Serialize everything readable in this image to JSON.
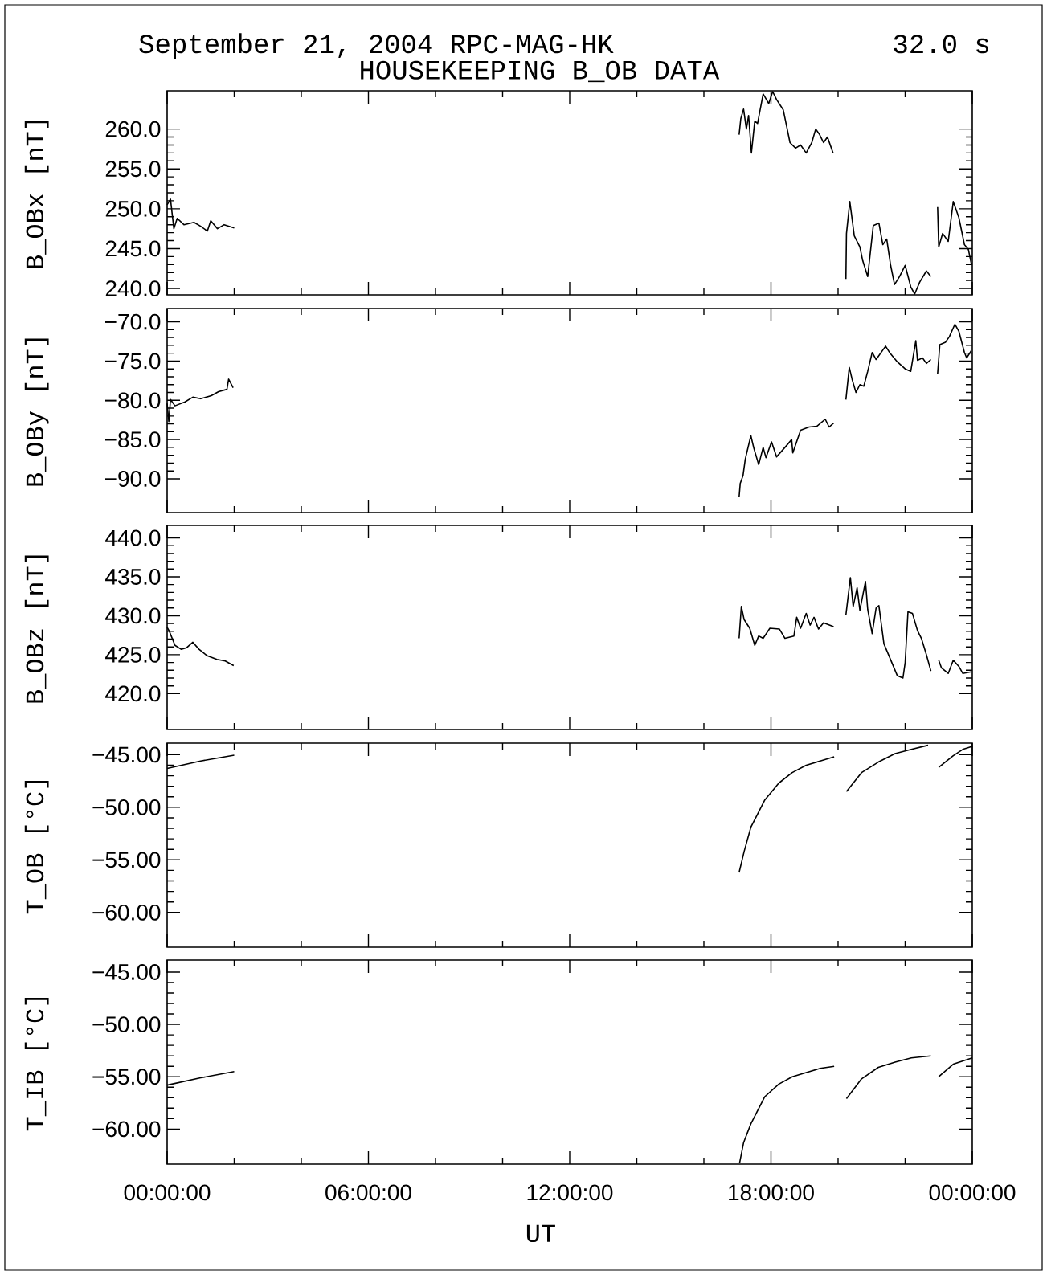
{
  "chart_data": [
    {
      "type": "line",
      "title": "September 21, 2004  RPC-MAG-HK",
      "subtitle": "HOUSEKEEPING B_OB DATA",
      "annotations": [
        "32.0 s"
      ],
      "ylabel": "B_OBx [nT]",
      "color": "#000000",
      "tick_labels": "y",
      "xlim": [
        "2004-09-21T00:00",
        "2004-09-22T00:00"
      ],
      "xticks": [
        {
          "value": "2004-09-21T00:00",
          "label": null
        },
        {
          "value": "2004-09-21T06:00",
          "label": null
        },
        {
          "value": "2004-09-21T12:00",
          "label": null
        },
        {
          "value": "2004-09-21T18:00",
          "label": null
        },
        {
          "value": "2004-09-22T00:00",
          "label": null
        }
      ],
      "ylim": [
        239.2,
        264.8
      ],
      "yticks": [
        {
          "value": 240,
          "label": "240.0"
        },
        {
          "value": 245,
          "label": "245.0"
        },
        {
          "value": 250,
          "label": "250.0"
        },
        {
          "value": 255,
          "label": "255.0"
        },
        {
          "value": 260,
          "label": "260.0"
        }
      ],
      "x": [
        "2004-09-21T00:00",
        "2004-09-21T00:06",
        "2004-09-21T00:12",
        "2004-09-21T00:18",
        "2004-09-21T00:30",
        "2004-09-21T00:48",
        "2004-09-21T01:00",
        "2004-09-21T01:12",
        "2004-09-21T01:18",
        "2004-09-21T01:30",
        "2004-09-21T01:42",
        "2004-09-21T02:00",
        null,
        "2004-09-21T17:03",
        "2004-09-21T17:06",
        "2004-09-21T17:11",
        "2004-09-21T17:16",
        "2004-09-21T17:20",
        "2004-09-21T17:25",
        "2004-09-21T17:31",
        "2004-09-21T17:36",
        "2004-09-21T17:46",
        "2004-09-21T17:56",
        "2004-09-21T18:03",
        "2004-09-21T18:10",
        "2004-09-21T18:22",
        "2004-09-21T18:34",
        "2004-09-21T18:44",
        "2004-09-21T18:53",
        "2004-09-21T19:03",
        "2004-09-21T19:13",
        "2004-09-21T19:20",
        "2004-09-21T19:27",
        "2004-09-21T19:34",
        "2004-09-21T19:41",
        "2004-09-21T19:51",
        null,
        "2004-09-21T20:14",
        "2004-09-21T20:15",
        "2004-09-21T20:21",
        "2004-09-21T20:29",
        "2004-09-21T20:39",
        "2004-09-21T20:44",
        "2004-09-21T20:53",
        "2004-09-21T21:03",
        "2004-09-21T21:13",
        "2004-09-21T21:20",
        "2004-09-21T21:27",
        "2004-09-21T21:34",
        "2004-09-21T21:41",
        "2004-09-21T21:50",
        "2004-09-21T22:00",
        "2004-09-21T22:10",
        "2004-09-21T22:17",
        "2004-09-21T22:26",
        "2004-09-21T22:38",
        "2004-09-21T22:46",
        null,
        "2004-09-21T22:58",
        "2004-09-21T23:00",
        "2004-09-21T23:07",
        "2004-09-21T23:17",
        "2004-09-21T23:26",
        "2004-09-21T23:36",
        "2004-09-21T23:46",
        "2004-09-21T23:53",
        "2004-09-21T23:58",
        "2004-09-22T00:00"
      ],
      "values": [
        250.5,
        251.2,
        247.5,
        248.8,
        248.0,
        248.3,
        247.8,
        247.2,
        248.5,
        247.5,
        248.0,
        247.6,
        null,
        259.3,
        261.3,
        262.5,
        260.0,
        261.7,
        257.0,
        261.0,
        260.7,
        264.4,
        263.2,
        264.7,
        263.7,
        262.4,
        258.3,
        257.6,
        258.0,
        257.0,
        258.3,
        260.0,
        259.3,
        258.3,
        259.0,
        257.0,
        null,
        241.2,
        246.9,
        250.9,
        246.6,
        245.2,
        243.5,
        241.5,
        247.9,
        248.2,
        245.5,
        246.2,
        242.9,
        240.5,
        241.5,
        242.9,
        240.2,
        239.3,
        240.8,
        242.2,
        241.5,
        null,
        250.2,
        245.2,
        246.9,
        245.9,
        250.9,
        248.9,
        245.5,
        244.9,
        243.2,
        243.0
      ]
    },
    {
      "type": "line",
      "ylabel": "B_OBy [nT]",
      "color": "#000000",
      "tick_labels": "y",
      "xlim": [
        "2004-09-21T00:00",
        "2004-09-22T00:00"
      ],
      "xticks": [
        {
          "value": "2004-09-21T00:00",
          "label": null
        },
        {
          "value": "2004-09-21T06:00",
          "label": null
        },
        {
          "value": "2004-09-21T12:00",
          "label": null
        },
        {
          "value": "2004-09-21T18:00",
          "label": null
        },
        {
          "value": "2004-09-22T00:00",
          "label": null
        }
      ],
      "ylim": [
        -94.3,
        -68.3
      ],
      "yticks": [
        {
          "value": -90,
          "label": "−90.0"
        },
        {
          "value": -85,
          "label": "−85.0"
        },
        {
          "value": -80,
          "label": "−80.0"
        },
        {
          "value": -75,
          "label": "−75.0"
        },
        {
          "value": -70,
          "label": "−70.0"
        }
      ],
      "x": [
        "2004-09-21T00:00",
        "2004-09-21T00:03",
        "2004-09-21T00:06",
        "2004-09-21T00:14",
        "2004-09-21T00:32",
        "2004-09-21T00:46",
        "2004-09-21T01:00",
        "2004-09-21T01:19",
        "2004-09-21T01:32",
        "2004-09-21T01:47",
        "2004-09-21T01:50",
        "2004-09-21T01:58",
        null,
        "2004-09-21T17:03",
        "2004-09-21T17:05",
        "2004-09-21T17:10",
        "2004-09-21T17:14",
        "2004-09-21T17:24",
        "2004-09-21T17:29",
        "2004-09-21T17:38",
        "2004-09-21T17:46",
        "2004-09-21T17:51",
        "2004-09-21T18:01",
        "2004-09-21T18:10",
        "2004-09-21T18:25",
        "2004-09-21T18:37",
        "2004-09-21T18:39",
        "2004-09-21T18:53",
        "2004-09-21T19:08",
        "2004-09-21T19:22",
        "2004-09-21T19:37",
        "2004-09-21T19:44",
        "2004-09-21T19:52",
        null,
        "2004-09-21T20:14",
        "2004-09-21T20:20",
        "2004-09-21T20:25",
        "2004-09-21T20:32",
        "2004-09-21T20:39",
        "2004-09-21T20:46",
        "2004-09-21T20:53",
        "2004-09-21T21:01",
        "2004-09-21T21:08",
        "2004-09-21T21:25",
        "2004-09-21T21:32",
        "2004-09-21T21:46",
        "2004-09-21T22:00",
        "2004-09-21T22:10",
        "2004-09-21T22:19",
        "2004-09-21T22:22",
        "2004-09-21T22:31",
        "2004-09-21T22:38",
        "2004-09-21T22:46",
        null,
        "2004-09-21T22:58",
        "2004-09-21T23:02",
        "2004-09-21T23:12",
        "2004-09-21T23:19",
        "2004-09-21T23:29",
        "2004-09-21T23:36",
        "2004-09-21T23:46",
        "2004-09-21T23:50",
        "2004-09-21T23:58"
      ],
      "values": [
        -80.4,
        -82.7,
        -79.9,
        -80.7,
        -80.2,
        -79.6,
        -79.8,
        -79.4,
        -78.9,
        -78.6,
        -77.3,
        -78.4,
        null,
        -92.3,
        -90.6,
        -89.6,
        -87.5,
        -84.5,
        -86.0,
        -88.2,
        -86.0,
        -87.3,
        -85.3,
        -87.2,
        -86.0,
        -85.0,
        -86.7,
        -83.8,
        -83.4,
        -83.3,
        -82.4,
        -83.4,
        -82.9,
        null,
        -79.9,
        -75.8,
        -77.3,
        -79.0,
        -78.0,
        -78.2,
        -76.3,
        -73.9,
        -74.8,
        -73.1,
        -73.9,
        -75.1,
        -76.0,
        -76.3,
        -72.4,
        -74.9,
        -74.6,
        -75.3,
        -74.8,
        null,
        -76.6,
        -72.9,
        -72.6,
        -71.9,
        -70.3,
        -71.2,
        -73.9,
        -74.6,
        -73.7
      ]
    },
    {
      "type": "line",
      "ylabel": "B_OBz [nT]",
      "color": "#000000",
      "tick_labels": "y",
      "xlim": [
        "2004-09-21T00:00",
        "2004-09-22T00:00"
      ],
      "xticks": [
        {
          "value": "2004-09-21T00:00",
          "label": null
        },
        {
          "value": "2004-09-21T06:00",
          "label": null
        },
        {
          "value": "2004-09-21T12:00",
          "label": null
        },
        {
          "value": "2004-09-21T18:00",
          "label": null
        },
        {
          "value": "2004-09-22T00:00",
          "label": null
        }
      ],
      "ylim": [
        415.4,
        441.6
      ],
      "yticks": [
        {
          "value": 420,
          "label": "420.0"
        },
        {
          "value": 425,
          "label": "425.0"
        },
        {
          "value": 430,
          "label": "430.0"
        },
        {
          "value": 435,
          "label": "435.0"
        },
        {
          "value": 440,
          "label": "440.0"
        }
      ],
      "x": [
        "2004-09-21T00:00",
        "2004-09-21T00:04",
        "2004-09-21T00:14",
        "2004-09-21T00:25",
        "2004-09-21T00:35",
        "2004-09-21T00:46",
        "2004-09-21T00:57",
        "2004-09-21T01:11",
        "2004-09-21T01:29",
        "2004-09-21T01:44",
        "2004-09-21T01:59",
        null,
        "2004-09-21T17:03",
        "2004-09-21T17:07",
        "2004-09-21T17:12",
        "2004-09-21T17:22",
        "2004-09-21T17:31",
        "2004-09-21T17:38",
        "2004-09-21T17:46",
        "2004-09-21T17:58",
        "2004-09-21T18:15",
        "2004-09-21T18:25",
        "2004-09-21T18:41",
        "2004-09-21T18:46",
        "2004-09-21T18:53",
        "2004-09-21T19:03",
        "2004-09-21T19:10",
        "2004-09-21T19:17",
        "2004-09-21T19:25",
        "2004-09-21T19:34",
        "2004-09-21T19:52",
        null,
        "2004-09-21T20:14",
        "2004-09-21T20:22",
        "2004-09-21T20:27",
        "2004-09-21T20:34",
        "2004-09-21T20:39",
        "2004-09-21T20:49",
        "2004-09-21T20:53",
        "2004-09-21T21:01",
        "2004-09-21T21:08",
        "2004-09-21T21:13",
        "2004-09-21T21:22",
        "2004-09-21T21:32",
        "2004-09-21T21:46",
        "2004-09-21T21:56",
        "2004-09-21T22:00",
        "2004-09-21T22:05",
        "2004-09-21T22:13",
        "2004-09-21T22:22",
        "2004-09-21T22:29",
        "2004-09-21T22:38",
        "2004-09-21T22:46",
        null,
        "2004-09-21T23:00",
        "2004-09-21T23:05",
        "2004-09-21T23:17",
        "2004-09-21T23:26",
        "2004-09-21T23:36",
        "2004-09-21T23:43",
        "2004-09-21T23:58"
      ],
      "values": [
        428.5,
        428.0,
        426.2,
        425.7,
        425.9,
        426.6,
        425.7,
        424.9,
        424.4,
        424.2,
        423.6,
        null,
        427.1,
        431.2,
        429.5,
        428.4,
        426.2,
        427.4,
        427.1,
        428.4,
        428.3,
        427.1,
        427.4,
        429.8,
        428.4,
        430.3,
        428.8,
        429.8,
        428.3,
        429.1,
        428.6,
        null,
        430.1,
        434.9,
        431.2,
        433.6,
        430.7,
        434.4,
        430.8,
        427.7,
        431.0,
        431.3,
        426.4,
        424.7,
        422.3,
        422.0,
        424.0,
        430.5,
        430.3,
        428.1,
        427.1,
        425.0,
        422.9,
        null,
        424.3,
        423.3,
        422.6,
        424.3,
        423.5,
        422.6,
        422.8
      ]
    },
    {
      "type": "line",
      "ylabel": "T_OB [°C]",
      "color": "#000000",
      "tick_labels": "y",
      "xlim": [
        "2004-09-21T00:00",
        "2004-09-22T00:00"
      ],
      "xticks": [
        {
          "value": "2004-09-21T00:00",
          "label": null
        },
        {
          "value": "2004-09-21T06:00",
          "label": null
        },
        {
          "value": "2004-09-21T12:00",
          "label": null
        },
        {
          "value": "2004-09-21T18:00",
          "label": null
        },
        {
          "value": "2004-09-22T00:00",
          "label": null
        }
      ],
      "ylim": [
        -63.3,
        -43.9
      ],
      "yticks": [
        {
          "value": -60,
          "label": "−60.00"
        },
        {
          "value": -55,
          "label": "−55.00"
        },
        {
          "value": -50,
          "label": "−50.00"
        },
        {
          "value": -45,
          "label": "−45.00"
        }
      ],
      "x": [
        "2004-09-21T00:00",
        "2004-09-21T01:00",
        "2004-09-21T02:00",
        null,
        "2004-09-21T17:03",
        "2004-09-21T17:12",
        "2004-09-21T17:24",
        "2004-09-21T17:49",
        "2004-09-21T18:14",
        "2004-09-21T18:38",
        "2004-09-21T19:03",
        "2004-09-21T19:28",
        "2004-09-21T19:53",
        null,
        "2004-09-21T20:15",
        "2004-09-21T20:42",
        "2004-09-21T21:12",
        "2004-09-21T21:42",
        "2004-09-21T22:11",
        "2004-09-21T22:41",
        null,
        "2004-09-21T23:00",
        "2004-09-21T23:26",
        "2004-09-21T23:43",
        "2004-09-22T00:00"
      ],
      "values": [
        -46.3,
        -45.6,
        -45.05,
        null,
        -56.2,
        -54.2,
        -51.9,
        -49.3,
        -47.7,
        -46.7,
        -46.0,
        -45.6,
        -45.2,
        null,
        -48.5,
        -46.7,
        -45.7,
        -44.9,
        -44.5,
        -44.1,
        null,
        -46.2,
        -45.1,
        -44.5,
        -44.2
      ]
    },
    {
      "type": "line",
      "ylabel": "T_IB [°C]",
      "xlabel": "UT",
      "color": "#000000",
      "xlim": [
        "2004-09-21T00:00",
        "2004-09-22T00:00"
      ],
      "xticks": [
        {
          "value": "2004-09-21T00:00",
          "label": "00:00:00"
        },
        {
          "value": "2004-09-21T06:00",
          "label": "06:00:00"
        },
        {
          "value": "2004-09-21T12:00",
          "label": "12:00:00"
        },
        {
          "value": "2004-09-21T18:00",
          "label": "18:00:00"
        },
        {
          "value": "2004-09-22T00:00",
          "label": "00:00:00"
        }
      ],
      "ylim": [
        -63.35,
        -43.85
      ],
      "yticks": [
        {
          "value": -60,
          "label": "−60.00"
        },
        {
          "value": -55,
          "label": "−55.00"
        },
        {
          "value": -50,
          "label": "−50.00"
        },
        {
          "value": -45,
          "label": "−45.00"
        }
      ],
      "x": [
        "2004-09-21T00:00",
        "2004-09-21T01:00",
        "2004-09-21T02:00",
        null,
        "2004-09-21T17:04",
        "2004-09-21T17:11",
        "2004-09-21T17:24",
        "2004-09-21T17:49",
        "2004-09-21T18:14",
        "2004-09-21T18:38",
        "2004-09-21T19:03",
        "2004-09-21T19:28",
        "2004-09-21T19:53",
        null,
        "2004-09-21T20:15",
        "2004-09-21T20:42",
        "2004-09-21T21:12",
        "2004-09-21T21:42",
        "2004-09-21T22:11",
        "2004-09-21T22:46",
        null,
        "2004-09-21T23:00",
        "2004-09-21T23:26",
        "2004-09-22T00:00"
      ],
      "values": [
        -55.8,
        -55.1,
        -54.5,
        null,
        -63.2,
        -61.3,
        -59.5,
        -56.9,
        -55.7,
        -55.0,
        -54.6,
        -54.2,
        -54.0,
        null,
        -57.1,
        -55.2,
        -54.1,
        -53.6,
        -53.2,
        -53.0,
        null,
        -55.0,
        -53.8,
        -53.2
      ]
    }
  ]
}
